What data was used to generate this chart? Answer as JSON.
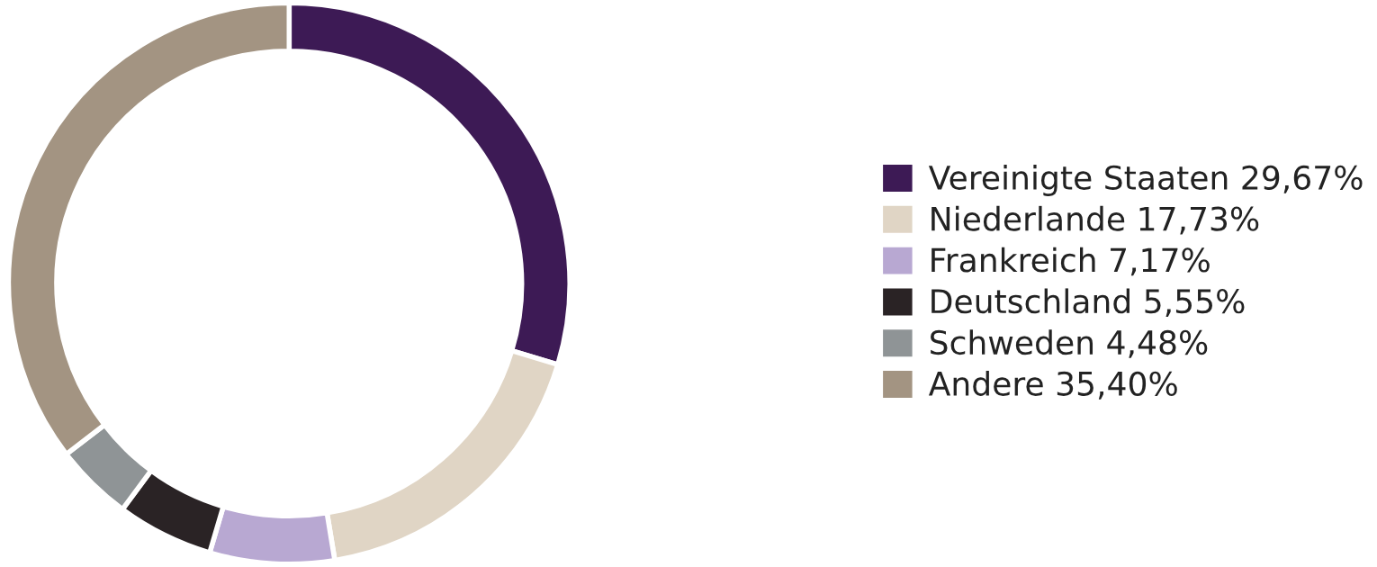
{
  "chart_data": {
    "type": "donut",
    "categories": [
      "Vereinigte Staaten",
      "Niederlande",
      "Frankreich",
      "Deutschland",
      "Schweden",
      "Andere"
    ],
    "values": [
      29.67,
      17.73,
      7.17,
      5.55,
      4.48,
      35.4
    ],
    "value_labels": [
      "29,67%",
      "17,73%",
      "7,17%",
      "5,55%",
      "4,48%",
      "35,40%"
    ],
    "colors": [
      "#3d1a55",
      "#e0d5c5",
      "#b8a8d2",
      "#2a2325",
      "#8f9496",
      "#a39482"
    ],
    "legend": "right"
  }
}
